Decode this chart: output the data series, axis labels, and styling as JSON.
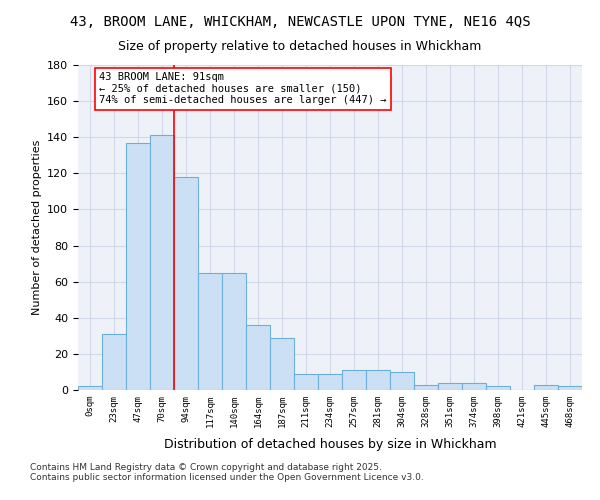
{
  "title_line1": "43, BROOM LANE, WHICKHAM, NEWCASTLE UPON TYNE, NE16 4QS",
  "title_line2": "Size of property relative to detached houses in Whickham",
  "xlabel": "Distribution of detached houses by size in Whickham",
  "ylabel": "Number of detached properties",
  "bin_labels": [
    "0sqm",
    "23sqm",
    "47sqm",
    "70sqm",
    "94sqm",
    "117sqm",
    "140sqm",
    "164sqm",
    "187sqm",
    "211sqm",
    "234sqm",
    "257sqm",
    "281sqm",
    "304sqm",
    "328sqm",
    "351sqm",
    "374sqm",
    "398sqm",
    "421sqm",
    "445sqm",
    "468sqm"
  ],
  "bar_values": [
    2,
    31,
    137,
    141,
    118,
    65,
    65,
    36,
    29,
    9,
    9,
    11,
    11,
    10,
    3,
    4,
    4,
    2,
    0,
    3,
    2
  ],
  "bar_color": "#cce0f5",
  "bar_edge_color": "#6baed6",
  "grid_color": "#d0d8e8",
  "background_color": "#eef2f8",
  "red_line_x": 3.5,
  "annotation_box_text": "43 BROOM LANE: 91sqm\n← 25% of detached houses are smaller (150)\n74% of semi-detached houses are larger (447) →",
  "footer_text": "Contains HM Land Registry data © Crown copyright and database right 2025.\nContains public sector information licensed under the Open Government Licence v3.0.",
  "ylim": [
    0,
    180
  ],
  "yticks": [
    0,
    20,
    40,
    60,
    80,
    100,
    120,
    140,
    160,
    180
  ],
  "title_fontsize": 10,
  "subtitle_fontsize": 9,
  "xlabel_fontsize": 9,
  "ylabel_fontsize": 8,
  "annotation_fontsize": 7.5,
  "tick_fontsize": 6.5,
  "footer_fontsize": 6.5
}
